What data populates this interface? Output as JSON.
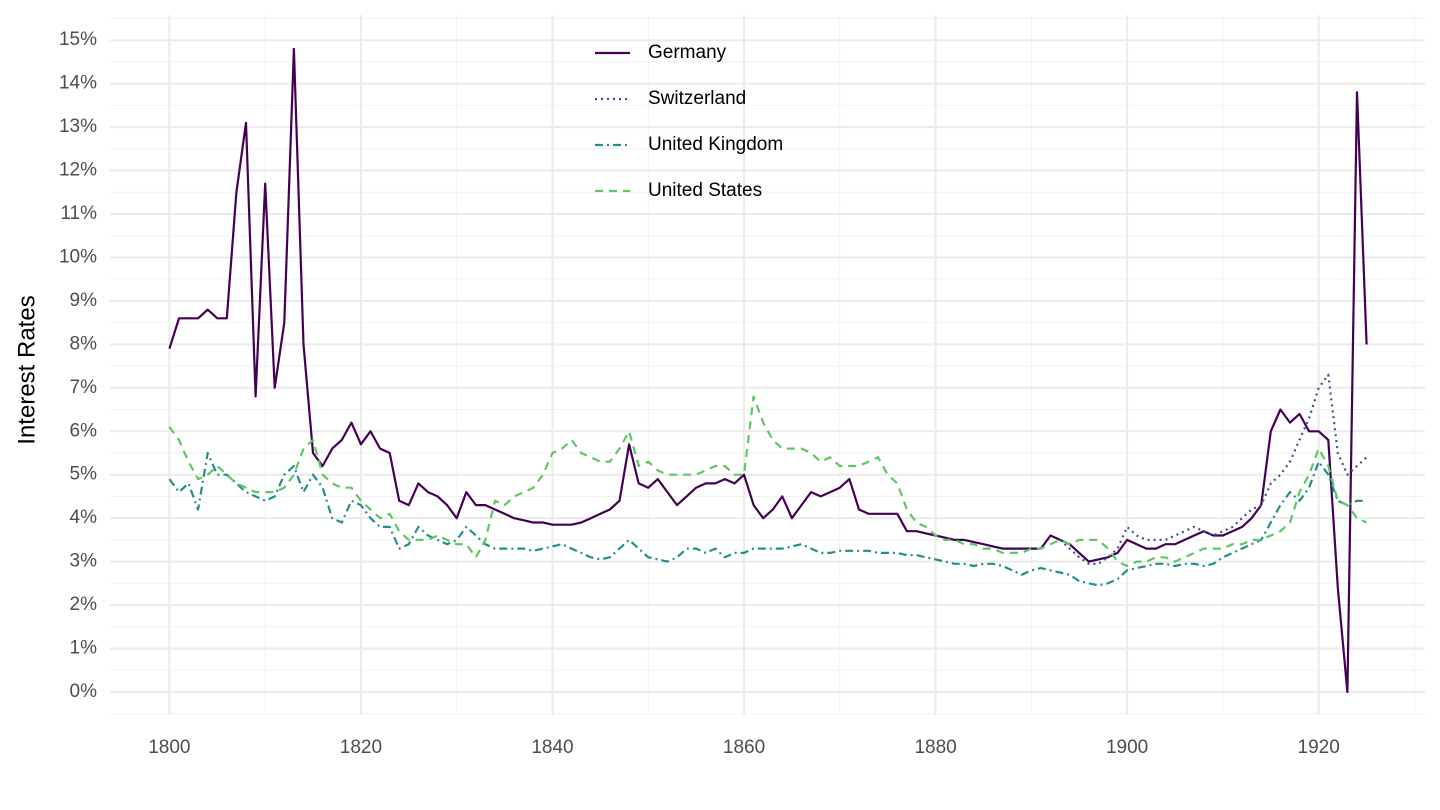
{
  "chart_data": {
    "type": "line",
    "ylabel": "Interest Rates",
    "x": [
      1800,
      1801,
      1802,
      1803,
      1804,
      1805,
      1806,
      1807,
      1808,
      1809,
      1810,
      1811,
      1812,
      1813,
      1814,
      1815,
      1816,
      1817,
      1818,
      1819,
      1820,
      1821,
      1822,
      1823,
      1824,
      1825,
      1826,
      1827,
      1828,
      1829,
      1830,
      1831,
      1832,
      1833,
      1834,
      1835,
      1836,
      1837,
      1838,
      1839,
      1840,
      1841,
      1842,
      1843,
      1844,
      1845,
      1846,
      1847,
      1848,
      1849,
      1850,
      1851,
      1852,
      1853,
      1854,
      1855,
      1856,
      1857,
      1858,
      1859,
      1860,
      1861,
      1862,
      1863,
      1864,
      1865,
      1866,
      1867,
      1868,
      1869,
      1870,
      1871,
      1872,
      1873,
      1874,
      1875,
      1876,
      1877,
      1878,
      1879,
      1880,
      1881,
      1882,
      1883,
      1884,
      1885,
      1886,
      1887,
      1888,
      1889,
      1890,
      1891,
      1892,
      1893,
      1894,
      1895,
      1896,
      1897,
      1898,
      1899,
      1900,
      1901,
      1902,
      1903,
      1904,
      1905,
      1906,
      1907,
      1908,
      1909,
      1910,
      1911,
      1912,
      1913,
      1914,
      1915,
      1916,
      1917,
      1918,
      1919,
      1920,
      1921,
      1922,
      1923,
      1924,
      1925
    ],
    "series": [
      {
        "name": "Germany",
        "color": "#440154",
        "linestyle": "solid",
        "values": [
          7.9,
          8.6,
          8.6,
          8.6,
          8.8,
          8.6,
          8.6,
          11.5,
          13.1,
          6.8,
          11.7,
          7.0,
          8.5,
          14.8,
          8.0,
          5.5,
          5.2,
          5.6,
          5.8,
          6.2,
          5.7,
          6.0,
          5.6,
          5.5,
          4.4,
          4.3,
          4.8,
          4.6,
          4.5,
          4.3,
          4.0,
          4.6,
          4.3,
          4.3,
          4.2,
          4.1,
          4.0,
          3.95,
          3.9,
          3.9,
          3.85,
          3.85,
          3.85,
          3.9,
          4.0,
          4.1,
          4.2,
          4.4,
          5.7,
          4.8,
          4.7,
          4.9,
          4.6,
          4.3,
          4.5,
          4.7,
          4.8,
          4.8,
          4.9,
          4.8,
          5.0,
          4.3,
          4.0,
          4.2,
          4.5,
          4.0,
          4.3,
          4.6,
          4.5,
          4.6,
          4.7,
          4.9,
          4.2,
          4.1,
          4.1,
          4.1,
          4.1,
          3.7,
          3.7,
          3.65,
          3.6,
          3.55,
          3.5,
          3.5,
          3.45,
          3.4,
          3.35,
          3.3,
          3.3,
          3.3,
          3.3,
          3.3,
          3.6,
          3.5,
          3.4,
          3.2,
          3.0,
          3.05,
          3.1,
          3.2,
          3.5,
          3.4,
          3.3,
          3.3,
          3.4,
          3.4,
          3.5,
          3.6,
          3.7,
          3.6,
          3.6,
          3.7,
          3.8,
          4.0,
          4.3,
          6.0,
          6.5,
          6.2,
          6.4,
          6.0,
          6.0,
          5.8,
          2.4,
          0.0,
          13.8,
          8.0
        ]
      },
      {
        "name": "Switzerland",
        "color": "#3b528b",
        "linestyle": "dotted",
        "values": [
          null,
          null,
          null,
          null,
          null,
          null,
          null,
          null,
          null,
          null,
          null,
          null,
          null,
          null,
          null,
          null,
          null,
          null,
          null,
          null,
          null,
          null,
          null,
          null,
          null,
          null,
          null,
          null,
          null,
          null,
          null,
          null,
          null,
          null,
          null,
          null,
          null,
          null,
          null,
          null,
          null,
          null,
          null,
          null,
          null,
          null,
          null,
          null,
          null,
          null,
          null,
          null,
          null,
          null,
          null,
          null,
          null,
          null,
          null,
          null,
          null,
          null,
          null,
          null,
          null,
          null,
          null,
          null,
          null,
          null,
          null,
          null,
          null,
          null,
          null,
          null,
          null,
          null,
          null,
          null,
          null,
          null,
          null,
          null,
          null,
          null,
          null,
          null,
          null,
          null,
          null,
          null,
          null,
          3.5,
          3.3,
          3.1,
          2.95,
          2.95,
          3.1,
          3.3,
          3.8,
          3.6,
          3.5,
          3.5,
          3.5,
          3.6,
          3.7,
          3.8,
          3.7,
          3.6,
          3.7,
          3.8,
          4.0,
          4.2,
          4.3,
          4.8,
          5.0,
          5.3,
          5.8,
          6.3,
          7.0,
          7.3,
          5.5,
          5.0,
          5.2,
          5.4
        ]
      },
      {
        "name": "United Kingdom",
        "color": "#21908c",
        "linestyle": "dashdot",
        "values": [
          4.9,
          4.6,
          4.8,
          4.2,
          5.5,
          5.0,
          5.0,
          4.8,
          4.6,
          4.5,
          4.4,
          4.5,
          5.0,
          5.2,
          4.6,
          5.0,
          4.7,
          4.0,
          3.9,
          4.4,
          4.3,
          4.0,
          3.8,
          3.8,
          3.3,
          3.4,
          3.8,
          3.6,
          3.5,
          3.4,
          3.5,
          3.8,
          3.6,
          3.4,
          3.3,
          3.3,
          3.3,
          3.3,
          3.25,
          3.3,
          3.35,
          3.4,
          3.3,
          3.2,
          3.1,
          3.05,
          3.1,
          3.3,
          3.5,
          3.3,
          3.1,
          3.05,
          3.0,
          3.1,
          3.3,
          3.3,
          3.2,
          3.3,
          3.1,
          3.2,
          3.2,
          3.3,
          3.3,
          3.3,
          3.3,
          3.35,
          3.4,
          3.3,
          3.2,
          3.2,
          3.25,
          3.25,
          3.25,
          3.25,
          3.2,
          3.2,
          3.2,
          3.15,
          3.15,
          3.1,
          3.05,
          3.0,
          2.95,
          2.95,
          2.9,
          2.95,
          2.95,
          2.9,
          2.8,
          2.7,
          2.8,
          2.85,
          2.8,
          2.75,
          2.7,
          2.55,
          2.5,
          2.45,
          2.5,
          2.6,
          2.8,
          2.85,
          2.9,
          2.95,
          2.95,
          2.9,
          2.95,
          2.95,
          2.9,
          2.95,
          3.1,
          3.2,
          3.3,
          3.4,
          3.5,
          3.9,
          4.3,
          4.6,
          4.4,
          4.7,
          5.3,
          5.0,
          4.4,
          4.3,
          4.4,
          4.4
        ]
      },
      {
        "name": "United States",
        "color": "#5dc863",
        "linestyle": "dashed",
        "values": [
          6.1,
          5.8,
          5.3,
          4.9,
          5.0,
          5.2,
          5.0,
          4.8,
          4.7,
          4.6,
          4.6,
          4.6,
          4.7,
          5.0,
          5.6,
          5.8,
          5.0,
          4.8,
          4.7,
          4.7,
          4.4,
          4.2,
          4.0,
          4.1,
          3.7,
          3.5,
          3.5,
          3.5,
          3.6,
          3.5,
          3.4,
          3.4,
          3.1,
          3.5,
          4.4,
          4.3,
          4.5,
          4.6,
          4.7,
          5.0,
          5.5,
          5.6,
          5.8,
          5.5,
          5.4,
          5.3,
          5.3,
          5.6,
          6.0,
          5.2,
          5.3,
          5.1,
          5.0,
          5.0,
          5.0,
          5.0,
          5.1,
          5.2,
          5.2,
          5.0,
          5.0,
          6.8,
          6.2,
          5.8,
          5.6,
          5.6,
          5.6,
          5.5,
          5.3,
          5.4,
          5.2,
          5.2,
          5.2,
          5.3,
          5.4,
          5.0,
          4.8,
          4.2,
          3.9,
          3.8,
          3.6,
          3.5,
          3.5,
          3.4,
          3.4,
          3.3,
          3.3,
          3.2,
          3.2,
          3.2,
          3.3,
          3.3,
          3.4,
          3.5,
          3.4,
          3.5,
          3.5,
          3.5,
          3.3,
          3.0,
          2.9,
          3.0,
          3.0,
          3.1,
          3.1,
          3.0,
          3.1,
          3.2,
          3.3,
          3.3,
          3.3,
          3.4,
          3.4,
          3.5,
          3.5,
          3.6,
          3.7,
          3.9,
          4.6,
          5.0,
          5.6,
          5.2,
          4.4,
          4.3,
          4.0,
          3.9
        ]
      }
    ],
    "xlim": [
      1793.8,
      1931.1
    ],
    "ylim": [
      -0.53,
      15.58
    ],
    "xticks": [
      1800,
      1820,
      1840,
      1860,
      1880,
      1900,
      1920
    ],
    "xminorticks": [
      1810,
      1830,
      1850,
      1870,
      1890,
      1910,
      1930
    ],
    "yticks": [
      {
        "value": 0,
        "label": "0%"
      },
      {
        "value": 1,
        "label": "1%"
      },
      {
        "value": 2,
        "label": "2%"
      },
      {
        "value": 3,
        "label": "3%"
      },
      {
        "value": 4,
        "label": "4%"
      },
      {
        "value": 5,
        "label": "5%"
      },
      {
        "value": 6,
        "label": "6%"
      },
      {
        "value": 7,
        "label": "7%"
      },
      {
        "value": 8,
        "label": "8%"
      },
      {
        "value": 9,
        "label": "9%"
      },
      {
        "value": 10,
        "label": "10%"
      },
      {
        "value": 11,
        "label": "11%"
      },
      {
        "value": 12,
        "label": "12%"
      },
      {
        "value": 13,
        "label": "13%"
      },
      {
        "value": 14,
        "label": "14%"
      },
      {
        "value": 15,
        "label": "15%"
      }
    ],
    "yminorticks": [
      -0.5,
      0.5,
      1.5,
      2.5,
      3.5,
      4.5,
      5.5,
      6.5,
      7.5,
      8.5,
      9.5,
      10.5,
      11.5,
      12.5,
      13.5,
      14.5,
      15.5
    ],
    "grid": true,
    "legend": "top"
  }
}
